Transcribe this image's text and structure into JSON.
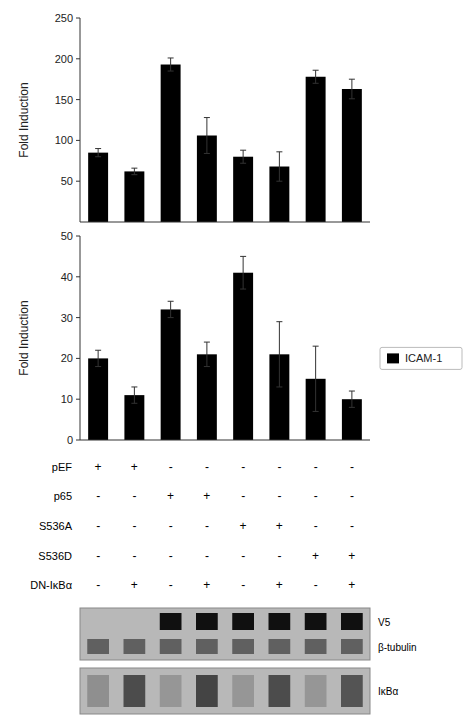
{
  "chart_data": [
    {
      "type": "bar",
      "ylabel": "Fold Induction",
      "values": [
        85,
        62,
        193,
        106,
        80,
        68,
        178,
        163
      ],
      "errors": [
        5,
        4,
        8,
        22,
        8,
        18,
        8,
        12
      ],
      "color": "#000000",
      "ylim": [
        0,
        250
      ],
      "yticks": [
        50,
        100,
        150,
        200,
        250
      ],
      "tick_labels": "y"
    },
    {
      "type": "bar",
      "ylabel": "Fold Induction",
      "series": [
        {
          "name": "ICAM-1",
          "color": "#000000",
          "values": [
            20,
            11,
            32,
            21,
            41,
            21,
            15,
            10
          ],
          "errors": [
            2,
            2,
            2,
            3,
            4,
            8,
            8,
            2
          ]
        }
      ],
      "ylim": [
        0,
        50
      ],
      "yticks": [
        0,
        10,
        20,
        30,
        40,
        50
      ],
      "legend": "right",
      "tick_labels": "y"
    },
    {
      "type": "table",
      "rows": [
        "pEF",
        "p65",
        "S536A",
        "S536D",
        "DN-IκBα"
      ],
      "cells": [
        [
          "+",
          "+",
          "-",
          "-",
          "-",
          "-",
          "-",
          "-"
        ],
        [
          "-",
          "-",
          "+",
          "+",
          "-",
          "-",
          "-",
          "-"
        ],
        [
          "-",
          "-",
          "-",
          "-",
          "+",
          "+",
          "-",
          "-"
        ],
        [
          "-",
          "-",
          "-",
          "-",
          "-",
          "-",
          "+",
          "+"
        ],
        [
          "-",
          "+",
          "-",
          "+",
          "-",
          "+",
          "-",
          "+"
        ]
      ]
    },
    {
      "type": "blot",
      "bands": [
        {
          "name": "V5",
          "color": "#101010",
          "values": [
            0,
            0,
            1,
            1,
            1,
            1,
            1,
            1
          ]
        },
        {
          "name": "β-tubulin",
          "color": "#606060",
          "values": [
            1,
            1,
            1,
            1,
            1,
            1,
            1,
            1
          ]
        },
        {
          "name": "IκBα",
          "color": "#000000",
          "values": [
            0.25,
            0.65,
            0.2,
            0.7,
            0.2,
            0.65,
            0.2,
            0.6
          ]
        }
      ]
    }
  ]
}
